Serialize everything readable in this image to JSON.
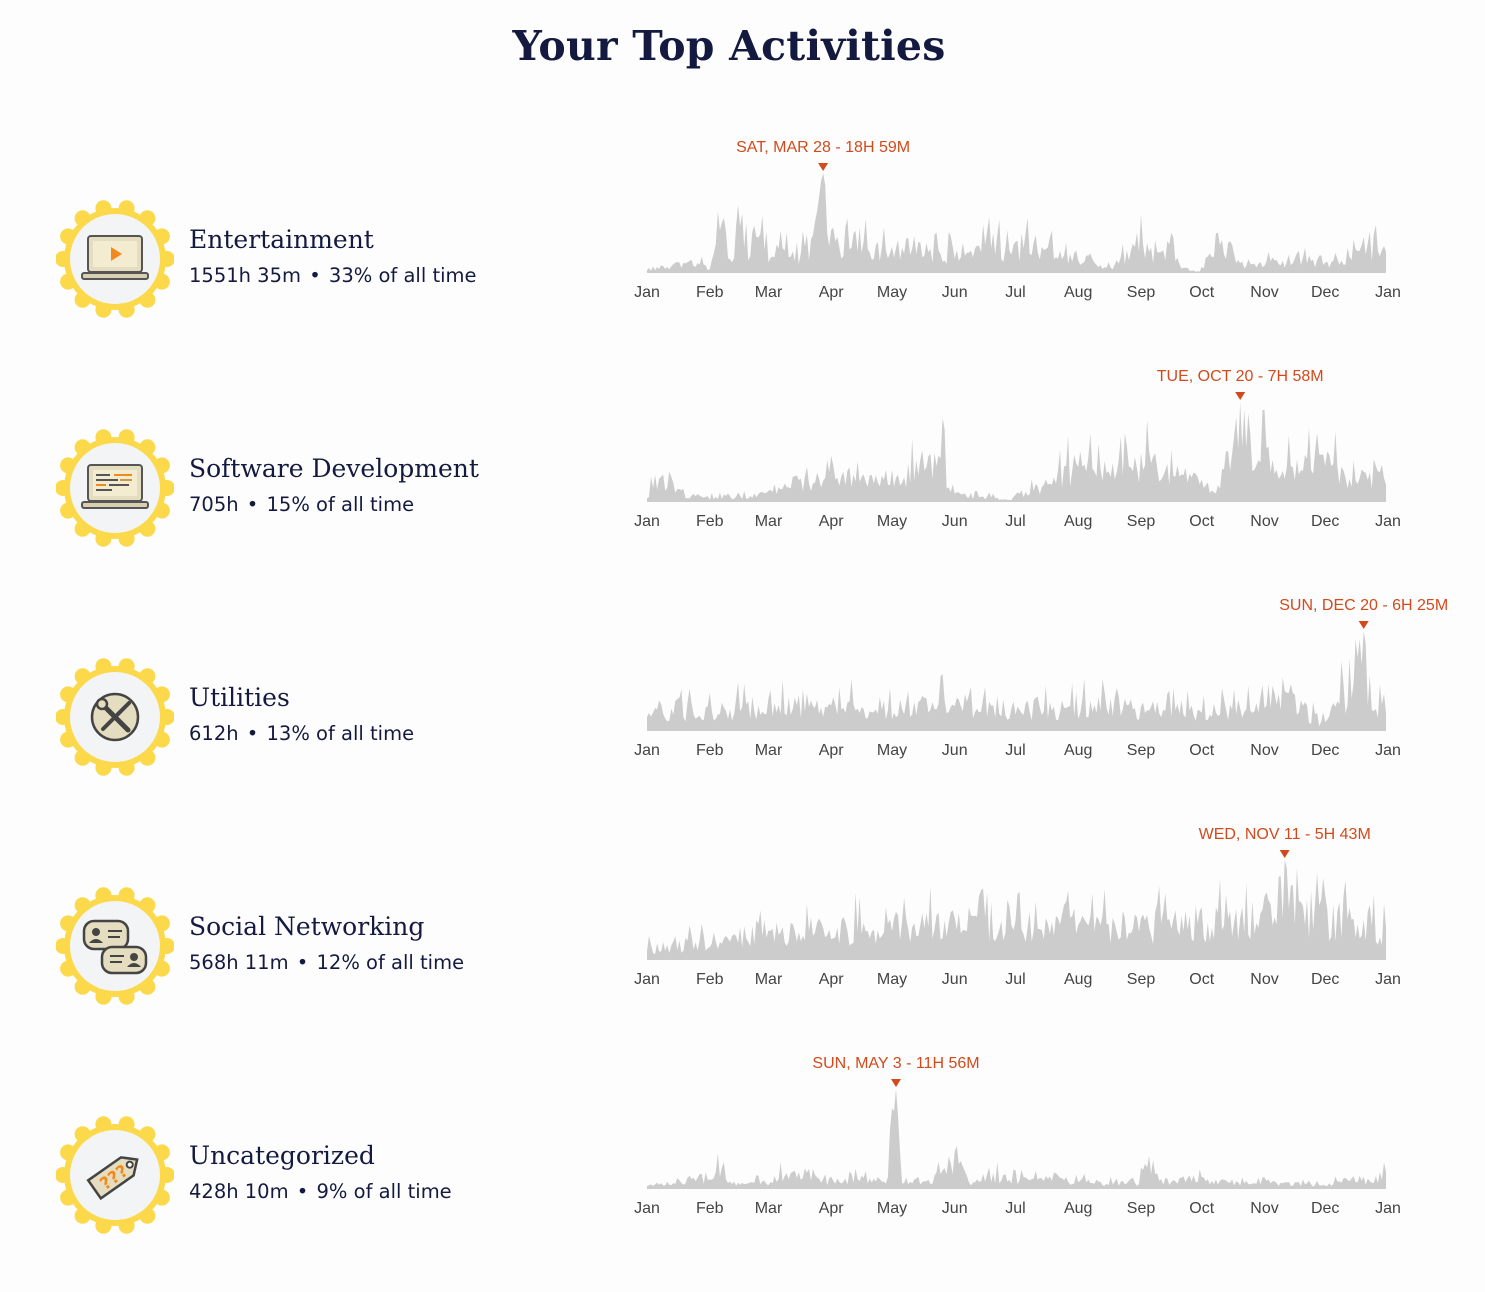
{
  "title": "Your Top Activities",
  "colors": {
    "accent": "#d24a1c",
    "area": "#cccccc",
    "badge_ring": "#fbd94b",
    "text": "#141a3f"
  },
  "activities": [
    {
      "name": "Entertainment",
      "hours": "1551h 35m",
      "share": "33% of all time",
      "icon": "laptop-play-icon"
    },
    {
      "name": "Software Development",
      "hours": "705h",
      "share": "15% of all time",
      "icon": "laptop-code-icon"
    },
    {
      "name": "Utilities",
      "hours": "612h",
      "share": "13% of all time",
      "icon": "wrench-screwdriver-icon"
    },
    {
      "name": "Social Networking",
      "hours": "568h 11m",
      "share": "12% of all time",
      "icon": "chat-people-icon"
    },
    {
      "name": "Uncategorized",
      "hours": "428h 10m",
      "share": "9% of all time",
      "icon": "question-tag-icon"
    }
  ],
  "chart_data": [
    {
      "type": "area",
      "series": [
        {
          "name": "Entertainment"
        }
      ],
      "x_ticks": [
        "Jan",
        "Feb",
        "Mar",
        "Apr",
        "May",
        "Jun",
        "Jul",
        "Aug",
        "Sep",
        "Oct",
        "Nov",
        "Dec",
        "Jan"
      ],
      "peak": {
        "date": "2020-03-28",
        "label": "SAT, MAR 28 - 18H 59M",
        "value_hours": 18.98
      },
      "profile": [
        [
          "2020-01-01",
          1
        ],
        [
          "2020-01-10",
          1.5
        ],
        [
          "2020-01-25",
          2.5
        ],
        [
          "2020-02-01",
          1
        ],
        [
          "2020-02-05",
          7
        ],
        [
          "2020-02-08",
          9.5
        ],
        [
          "2020-02-12",
          5
        ],
        [
          "2020-02-16",
          14
        ],
        [
          "2020-02-20",
          6
        ],
        [
          "2020-02-24",
          9
        ],
        [
          "2020-03-01",
          4
        ],
        [
          "2020-03-08",
          7
        ],
        [
          "2020-03-15",
          4
        ],
        [
          "2020-03-22",
          6
        ],
        [
          "2020-03-28",
          18.98
        ],
        [
          "2020-04-05",
          5
        ],
        [
          "2020-04-15",
          8
        ],
        [
          "2020-04-25",
          6
        ],
        [
          "2020-05-01",
          5
        ],
        [
          "2020-05-10",
          7.5
        ],
        [
          "2020-05-20",
          5
        ],
        [
          "2020-06-01",
          5
        ],
        [
          "2020-06-10",
          6
        ],
        [
          "2020-06-18",
          10
        ],
        [
          "2020-06-25",
          5
        ],
        [
          "2020-07-05",
          6
        ],
        [
          "2020-07-15",
          7.5
        ],
        [
          "2020-07-25",
          5
        ],
        [
          "2020-08-01",
          3
        ],
        [
          "2020-08-08",
          4
        ],
        [
          "2020-08-15",
          1
        ],
        [
          "2020-08-22",
          3
        ],
        [
          "2020-09-01",
          7
        ],
        [
          "2020-09-08",
          4
        ],
        [
          "2020-09-15",
          6
        ],
        [
          "2020-09-22",
          1
        ],
        [
          "2020-09-30",
          0.3
        ],
        [
          "2020-10-05",
          6
        ],
        [
          "2020-10-09",
          10
        ],
        [
          "2020-10-15",
          6
        ],
        [
          "2020-10-20",
          2
        ],
        [
          "2020-10-30",
          3
        ],
        [
          "2020-11-10",
          2
        ],
        [
          "2020-11-20",
          3
        ],
        [
          "2020-12-01",
          2
        ],
        [
          "2020-12-10",
          3
        ],
        [
          "2020-12-20",
          5
        ],
        [
          "2020-12-31",
          7
        ]
      ]
    },
    {
      "type": "area",
      "series": [
        {
          "name": "Software Development"
        }
      ],
      "x_ticks": [
        "Jan",
        "Feb",
        "Mar",
        "Apr",
        "May",
        "Jun",
        "Jul",
        "Aug",
        "Sep",
        "Oct",
        "Nov",
        "Dec",
        "Jan"
      ],
      "peak": {
        "date": "2020-10-20",
        "label": "TUE, OCT 20 - 7H 58M",
        "value_hours": 7.97
      },
      "profile": [
        [
          "2020-01-01",
          0.5
        ],
        [
          "2020-01-06",
          2.5
        ],
        [
          "2020-01-12",
          1.5
        ],
        [
          "2020-01-20",
          0.8
        ],
        [
          "2020-02-01",
          0.5
        ],
        [
          "2020-02-15",
          0.5
        ],
        [
          "2020-03-01",
          1
        ],
        [
          "2020-03-10",
          2
        ],
        [
          "2020-03-20",
          2.5
        ],
        [
          "2020-04-01",
          2.5
        ],
        [
          "2020-04-10",
          3
        ],
        [
          "2020-04-20",
          2
        ],
        [
          "2020-05-01",
          2.5
        ],
        [
          "2020-05-10",
          3.5
        ],
        [
          "2020-05-17",
          3
        ],
        [
          "2020-05-24",
          5
        ],
        [
          "2020-06-01",
          0.8
        ],
        [
          "2020-06-15",
          0.5
        ],
        [
          "2020-06-28",
          0.3
        ],
        [
          "2020-07-05",
          1
        ],
        [
          "2020-07-15",
          2
        ],
        [
          "2020-07-25",
          3
        ],
        [
          "2020-08-01",
          4
        ],
        [
          "2020-08-10",
          3
        ],
        [
          "2020-08-20",
          3.5
        ],
        [
          "2020-08-30",
          4
        ],
        [
          "2020-09-05",
          4.5
        ],
        [
          "2020-09-15",
          3
        ],
        [
          "2020-09-25",
          3
        ],
        [
          "2020-10-01",
          2
        ],
        [
          "2020-10-08",
          1
        ],
        [
          "2020-10-12",
          3
        ],
        [
          "2020-10-20",
          7.97
        ],
        [
          "2020-10-27",
          5
        ],
        [
          "2020-11-05",
          5
        ],
        [
          "2020-11-12",
          4
        ],
        [
          "2020-11-20",
          3
        ],
        [
          "2020-12-01",
          5
        ],
        [
          "2020-12-08",
          3
        ],
        [
          "2020-12-15",
          2
        ],
        [
          "2020-12-25",
          3
        ],
        [
          "2020-12-31",
          2
        ]
      ]
    },
    {
      "type": "area",
      "series": [
        {
          "name": "Utilities"
        }
      ],
      "x_ticks": [
        "Jan",
        "Feb",
        "Mar",
        "Apr",
        "May",
        "Jun",
        "Jul",
        "Aug",
        "Sep",
        "Oct",
        "Nov",
        "Dec",
        "Jan"
      ],
      "peak": {
        "date": "2020-12-20",
        "label": "SUN, DEC 20 - 6H 25M",
        "value_hours": 6.42
      },
      "profile": [
        [
          "2020-01-01",
          1.5
        ],
        [
          "2020-02-01",
          1.8
        ],
        [
          "2020-03-01",
          2
        ],
        [
          "2020-04-01",
          2
        ],
        [
          "2020-05-01",
          2
        ],
        [
          "2020-06-01",
          2.2
        ],
        [
          "2020-07-01",
          2
        ],
        [
          "2020-08-01",
          2
        ],
        [
          "2020-09-01",
          2
        ],
        [
          "2020-10-01",
          1.5
        ],
        [
          "2020-10-20",
          2
        ],
        [
          "2020-11-01",
          2
        ],
        [
          "2020-11-10",
          3.5
        ],
        [
          "2020-11-20",
          2
        ],
        [
          "2020-11-28",
          0.6
        ],
        [
          "2020-12-05",
          2.5
        ],
        [
          "2020-12-12",
          3
        ],
        [
          "2020-12-20",
          6.42
        ],
        [
          "2020-12-25",
          2
        ],
        [
          "2020-12-31",
          1.5
        ]
      ]
    },
    {
      "type": "area",
      "series": [
        {
          "name": "Social Networking"
        }
      ],
      "x_ticks": [
        "Jan",
        "Feb",
        "Mar",
        "Apr",
        "May",
        "Jun",
        "Jul",
        "Aug",
        "Sep",
        "Oct",
        "Nov",
        "Dec",
        "Jan"
      ],
      "peak": {
        "date": "2020-11-11",
        "label": "WED, NOV 11 - 5H 43M",
        "value_hours": 5.72
      },
      "profile": [
        [
          "2020-01-01",
          0.8
        ],
        [
          "2020-02-01",
          1.5
        ],
        [
          "2020-03-01",
          2
        ],
        [
          "2020-04-01",
          2.2
        ],
        [
          "2020-05-01",
          2.5
        ],
        [
          "2020-06-01",
          2.5
        ],
        [
          "2020-07-01",
          2.3
        ],
        [
          "2020-08-01",
          2.4
        ],
        [
          "2020-09-01",
          2.5
        ],
        [
          "2020-10-01",
          2.8
        ],
        [
          "2020-10-20",
          3
        ],
        [
          "2020-11-01",
          3.5
        ],
        [
          "2020-11-11",
          5.72
        ],
        [
          "2020-11-20",
          3.5
        ],
        [
          "2020-12-01",
          3
        ],
        [
          "2020-12-15",
          2.8
        ],
        [
          "2020-12-31",
          2.2
        ]
      ]
    },
    {
      "type": "area",
      "series": [
        {
          "name": "Uncategorized"
        }
      ],
      "x_ticks": [
        "Jan",
        "Feb",
        "Mar",
        "Apr",
        "May",
        "Jun",
        "Jul",
        "Aug",
        "Sep",
        "Oct",
        "Nov",
        "Dec",
        "Jan"
      ],
      "peak": {
        "date": "2020-05-03",
        "label": "SUN, MAY 3 - 11H 56M",
        "value_hours": 11.93
      },
      "profile": [
        [
          "2020-01-01",
          0.6
        ],
        [
          "2020-01-15",
          1.2
        ],
        [
          "2020-02-01",
          1.3
        ],
        [
          "2020-02-05",
          3
        ],
        [
          "2020-02-12",
          1
        ],
        [
          "2020-03-01",
          1
        ],
        [
          "2020-03-10",
          2.5
        ],
        [
          "2020-03-20",
          1.5
        ],
        [
          "2020-04-01",
          1.2
        ],
        [
          "2020-04-15",
          1.5
        ],
        [
          "2020-04-28",
          1
        ],
        [
          "2020-05-03",
          11.93
        ],
        [
          "2020-05-06",
          1
        ],
        [
          "2020-05-20",
          1.5
        ],
        [
          "2020-06-02",
          5
        ],
        [
          "2020-06-08",
          1
        ],
        [
          "2020-06-20",
          2
        ],
        [
          "2020-07-01",
          1.5
        ],
        [
          "2020-07-15",
          1.5
        ],
        [
          "2020-08-01",
          1.2
        ],
        [
          "2020-08-15",
          1
        ],
        [
          "2020-08-31",
          1
        ],
        [
          "2020-09-05",
          4.5
        ],
        [
          "2020-09-10",
          1.2
        ],
        [
          "2020-09-25",
          1.5
        ],
        [
          "2020-10-10",
          1.2
        ],
        [
          "2020-10-25",
          1
        ],
        [
          "2020-11-10",
          0.8
        ],
        [
          "2020-11-25",
          0.6
        ],
        [
          "2020-12-10",
          1.2
        ],
        [
          "2020-12-25",
          1.5
        ],
        [
          "2020-12-31",
          2.5
        ]
      ]
    }
  ]
}
